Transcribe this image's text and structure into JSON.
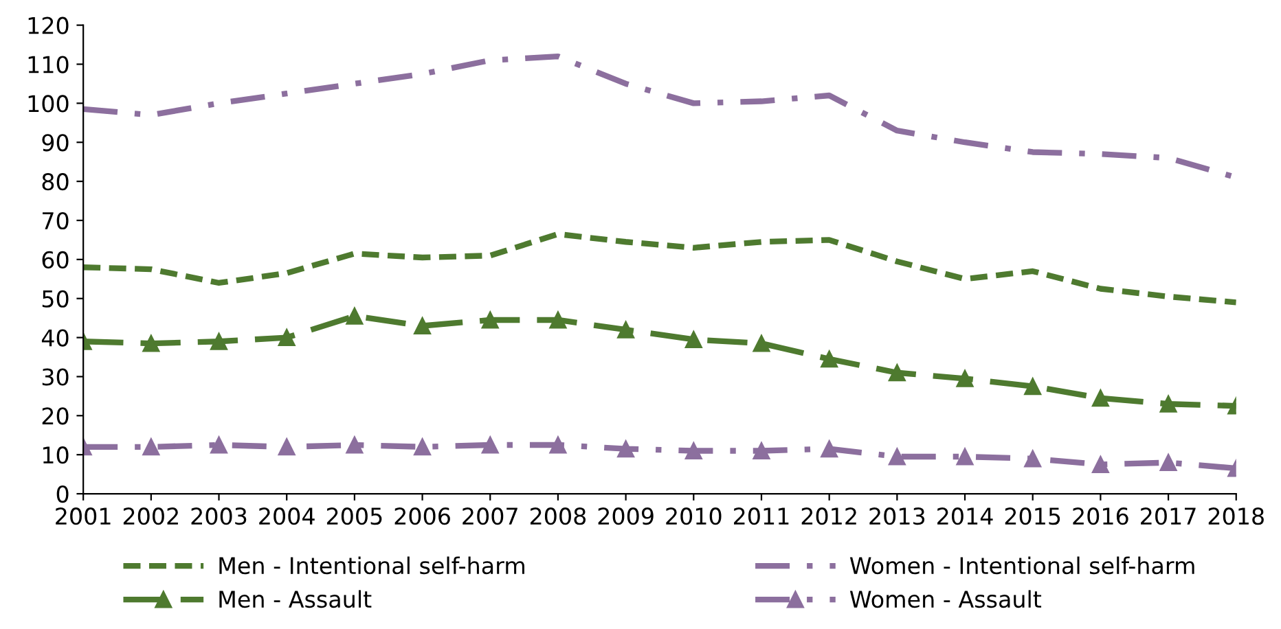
{
  "chart_data": {
    "type": "line",
    "x": [
      2001,
      2002,
      2003,
      2004,
      2005,
      2006,
      2007,
      2008,
      2009,
      2010,
      2011,
      2012,
      2013,
      2014,
      2015,
      2016,
      2017,
      2018
    ],
    "xlim": [
      2001,
      2018
    ],
    "xticks": [
      2001,
      2002,
      2003,
      2004,
      2005,
      2006,
      2007,
      2008,
      2009,
      2010,
      2011,
      2012,
      2013,
      2014,
      2015,
      2016,
      2017,
      2018
    ],
    "ylim": [
      0,
      120
    ],
    "yticks": [
      0,
      10,
      20,
      30,
      40,
      50,
      60,
      70,
      80,
      90,
      100,
      110,
      120
    ],
    "grid": false,
    "legend": "bottom",
    "series": [
      {
        "name": "Men - Intentional self-harm",
        "color": "#4e7a2f",
        "line_style": "dashed",
        "marker": "none",
        "values": [
          58,
          57.5,
          54,
          56.5,
          61.5,
          60.5,
          61,
          66.5,
          64.5,
          63,
          64.5,
          65,
          59.5,
          55,
          57,
          52.5,
          50.5,
          49
        ]
      },
      {
        "name": "Women - Intentional self-harm",
        "color": "#8c6f9e",
        "line_style": "dashdot",
        "marker": "none",
        "values": [
          98.5,
          97,
          100,
          102.5,
          105,
          107.5,
          111,
          112,
          105,
          100,
          100.5,
          102,
          93,
          90,
          87.5,
          87,
          86,
          81
        ]
      },
      {
        "name": "Men - Assault",
        "color": "#4e7a2f",
        "line_style": "longdash",
        "marker": "triangle",
        "values": [
          39,
          38.5,
          39,
          40,
          45.5,
          43,
          44.5,
          44.5,
          42,
          39.5,
          38.5,
          34.5,
          31,
          29.5,
          27.5,
          24.5,
          23,
          22.5
        ]
      },
      {
        "name": "Women - Assault",
        "color": "#8c6f9e",
        "line_style": "dashdot",
        "marker": "triangle",
        "values": [
          12,
          12,
          12.5,
          12,
          12.5,
          12,
          12.5,
          12.5,
          11.5,
          11,
          11,
          11.5,
          9.5,
          9.5,
          9,
          7.5,
          8,
          6.5
        ]
      }
    ]
  }
}
